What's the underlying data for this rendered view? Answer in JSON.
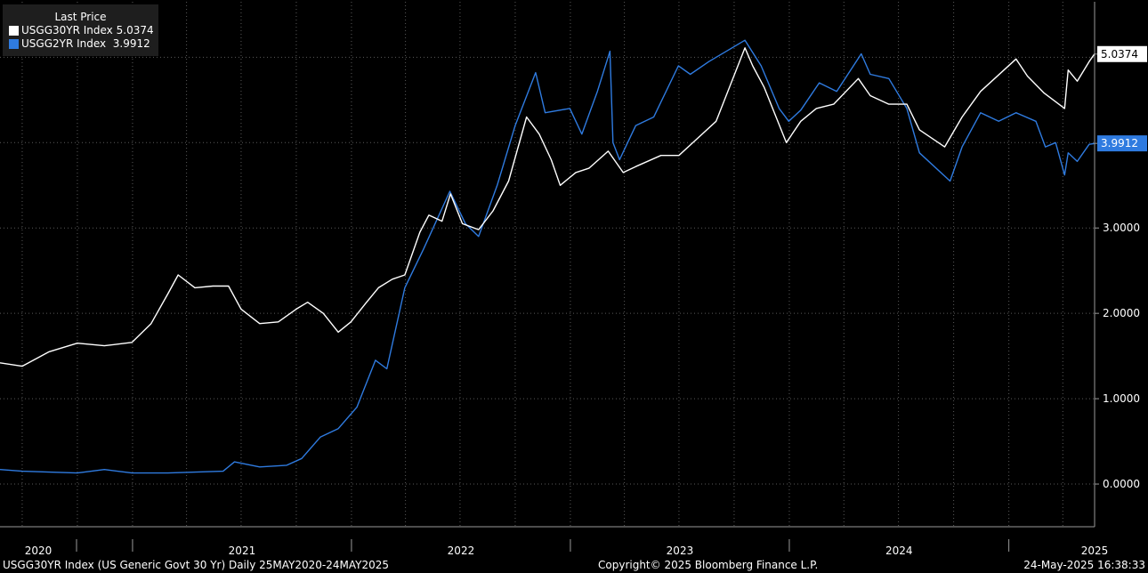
{
  "chart_data": {
    "type": "line",
    "legend_title": "Last Price",
    "legend_position": "top-left",
    "series": [
      {
        "name": "USGG30YR Index",
        "last": "5.0374",
        "color": "#ffffff",
        "points": [
          [
            "2020-05-25",
            1.42
          ],
          [
            "2020-07-01",
            1.38
          ],
          [
            "2020-08-15",
            1.55
          ],
          [
            "2020-10-01",
            1.65
          ],
          [
            "2020-11-15",
            1.62
          ],
          [
            "2020-12-31",
            1.66
          ],
          [
            "2021-02-01",
            1.88
          ],
          [
            "2021-03-01",
            2.23
          ],
          [
            "2021-03-18",
            2.45
          ],
          [
            "2021-04-15",
            2.3
          ],
          [
            "2021-05-15",
            2.32
          ],
          [
            "2021-06-10",
            2.32
          ],
          [
            "2021-07-01",
            2.05
          ],
          [
            "2021-08-01",
            1.88
          ],
          [
            "2021-09-01",
            1.9
          ],
          [
            "2021-10-01",
            2.05
          ],
          [
            "2021-10-20",
            2.13
          ],
          [
            "2021-11-15",
            2.0
          ],
          [
            "2021-12-10",
            1.78
          ],
          [
            "2021-12-31",
            1.9
          ],
          [
            "2022-01-25",
            2.12
          ],
          [
            "2022-02-15",
            2.3
          ],
          [
            "2022-03-10",
            2.4
          ],
          [
            "2022-03-31",
            2.45
          ],
          [
            "2022-04-25",
            2.95
          ],
          [
            "2022-05-10",
            3.15
          ],
          [
            "2022-06-01",
            3.08
          ],
          [
            "2022-06-15",
            3.4
          ],
          [
            "2022-07-05",
            3.05
          ],
          [
            "2022-08-01",
            2.98
          ],
          [
            "2022-08-25",
            3.2
          ],
          [
            "2022-09-20",
            3.55
          ],
          [
            "2022-10-20",
            4.3
          ],
          [
            "2022-11-10",
            4.1
          ],
          [
            "2022-11-30",
            3.8
          ],
          [
            "2022-12-15",
            3.5
          ],
          [
            "2023-01-10",
            3.65
          ],
          [
            "2023-02-01",
            3.7
          ],
          [
            "2023-03-05",
            3.9
          ],
          [
            "2023-03-30",
            3.65
          ],
          [
            "2023-04-20",
            3.72
          ],
          [
            "2023-06-01",
            3.85
          ],
          [
            "2023-07-01",
            3.85
          ],
          [
            "2023-08-01",
            4.05
          ],
          [
            "2023-09-01",
            4.25
          ],
          [
            "2023-10-19",
            5.11
          ],
          [
            "2023-11-01",
            4.9
          ],
          [
            "2023-11-20",
            4.65
          ],
          [
            "2023-12-27",
            4.0
          ],
          [
            "2024-01-20",
            4.25
          ],
          [
            "2024-02-15",
            4.4
          ],
          [
            "2024-03-15",
            4.45
          ],
          [
            "2024-04-25",
            4.75
          ],
          [
            "2024-05-15",
            4.55
          ],
          [
            "2024-06-15",
            4.45
          ],
          [
            "2024-07-15",
            4.45
          ],
          [
            "2024-08-05",
            4.15
          ],
          [
            "2024-09-16",
            3.95
          ],
          [
            "2024-10-15",
            4.3
          ],
          [
            "2024-11-15",
            4.6
          ],
          [
            "2025-01-13",
            4.98
          ],
          [
            "2025-02-01",
            4.78
          ],
          [
            "2025-03-01",
            4.58
          ],
          [
            "2025-04-04",
            4.4
          ],
          [
            "2025-04-10",
            4.85
          ],
          [
            "2025-04-25",
            4.72
          ],
          [
            "2025-05-15",
            4.95
          ],
          [
            "2025-05-24",
            5.04
          ]
        ]
      },
      {
        "name": "USGG2YR Index",
        "last": "3.9912",
        "color": "#2f7be0",
        "points": [
          [
            "2020-05-25",
            0.17
          ],
          [
            "2020-07-01",
            0.15
          ],
          [
            "2020-08-15",
            0.14
          ],
          [
            "2020-10-01",
            0.13
          ],
          [
            "2020-11-15",
            0.17
          ],
          [
            "2020-12-31",
            0.13
          ],
          [
            "2021-03-01",
            0.13
          ],
          [
            "2021-06-01",
            0.15
          ],
          [
            "2021-06-20",
            0.26
          ],
          [
            "2021-08-01",
            0.2
          ],
          [
            "2021-09-15",
            0.22
          ],
          [
            "2021-10-10",
            0.3
          ],
          [
            "2021-11-10",
            0.55
          ],
          [
            "2021-12-10",
            0.65
          ],
          [
            "2022-01-10",
            0.9
          ],
          [
            "2022-02-10",
            1.45
          ],
          [
            "2022-03-01",
            1.35
          ],
          [
            "2022-03-31",
            2.3
          ],
          [
            "2022-05-01",
            2.75
          ],
          [
            "2022-06-14",
            3.43
          ],
          [
            "2022-07-10",
            3.05
          ],
          [
            "2022-08-01",
            2.9
          ],
          [
            "2022-09-01",
            3.5
          ],
          [
            "2022-10-01",
            4.2
          ],
          [
            "2022-11-04",
            4.82
          ],
          [
            "2022-11-20",
            4.35
          ],
          [
            "2022-12-31",
            4.4
          ],
          [
            "2023-01-20",
            4.1
          ],
          [
            "2023-02-15",
            4.6
          ],
          [
            "2023-03-08",
            5.07
          ],
          [
            "2023-03-13",
            4.0
          ],
          [
            "2023-03-24",
            3.8
          ],
          [
            "2023-04-20",
            4.2
          ],
          [
            "2023-05-20",
            4.3
          ],
          [
            "2023-06-30",
            4.9
          ],
          [
            "2023-07-20",
            4.8
          ],
          [
            "2023-08-20",
            4.95
          ],
          [
            "2023-09-25",
            5.1
          ],
          [
            "2023-10-19",
            5.2
          ],
          [
            "2023-11-15",
            4.9
          ],
          [
            "2023-12-15",
            4.4
          ],
          [
            "2023-12-31",
            4.25
          ],
          [
            "2024-01-20",
            4.38
          ],
          [
            "2024-02-20",
            4.7
          ],
          [
            "2024-03-20",
            4.6
          ],
          [
            "2024-04-30",
            5.04
          ],
          [
            "2024-05-15",
            4.8
          ],
          [
            "2024-06-15",
            4.75
          ],
          [
            "2024-07-15",
            4.4
          ],
          [
            "2024-08-05",
            3.88
          ],
          [
            "2024-09-25",
            3.55
          ],
          [
            "2024-10-15",
            3.95
          ],
          [
            "2024-11-15",
            4.35
          ],
          [
            "2024-12-15",
            4.25
          ],
          [
            "2025-01-13",
            4.35
          ],
          [
            "2025-02-15",
            4.25
          ],
          [
            "2025-03-03",
            3.95
          ],
          [
            "2025-03-20",
            4.0
          ],
          [
            "2025-04-04",
            3.62
          ],
          [
            "2025-04-10",
            3.88
          ],
          [
            "2025-04-25",
            3.78
          ],
          [
            "2025-05-15",
            3.98
          ],
          [
            "2025-05-24",
            3.99
          ]
        ]
      }
    ],
    "x_range": [
      "2020-05-25",
      "2025-05-24"
    ],
    "ylim": [
      -0.5,
      5.65
    ],
    "yticks": [
      "0.0000",
      "1.0000",
      "2.0000",
      "3.0000"
    ],
    "xtick_labels": [
      "2020",
      "2021",
      "2022",
      "2023",
      "2024",
      "2025"
    ],
    "year_boundaries": [
      "2021-01-01",
      "2022-01-01",
      "2023-01-01",
      "2024-01-01",
      "2025-01-01"
    ],
    "grid": true,
    "footer_left": "USGG30YR Index (US Generic Govt 30 Yr)  Daily 25MAY2020-24MAY2025",
    "footer_center": "Copyright© 2025 Bloomberg Finance L.P.",
    "footer_right": "24-May-2025 16:38:33"
  }
}
